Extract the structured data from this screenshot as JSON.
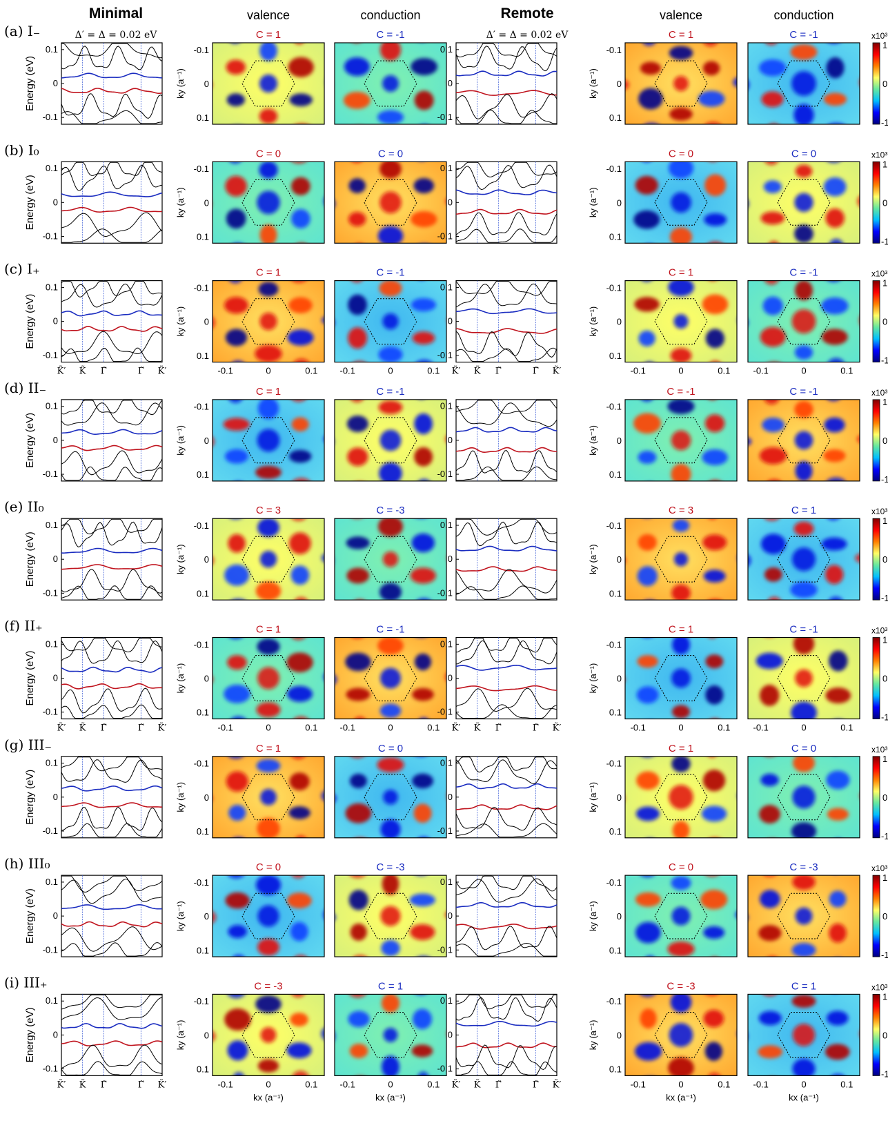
{
  "headers": {
    "minimal": "Minimal",
    "remote": "Remote",
    "valence": "valence",
    "conduction": "conduction",
    "params": "Δ′ = Δ = 0.02 eV"
  },
  "colorbar": {
    "scale": "x10³",
    "max": "1",
    "mid": "0",
    "min": "-1",
    "colors": [
      "#00007f",
      "#0000ff",
      "#00bfff",
      "#66e8a0",
      "#ffff66",
      "#ff8000",
      "#ff0000",
      "#800000"
    ]
  },
  "axes": {
    "energy_label": "Energy (eV)",
    "ky_label": "ky (a⁻¹)",
    "kx_label": "kx (a⁻¹)",
    "energy_ticks": [
      "0.1",
      "0",
      "-0.1"
    ],
    "ky_ticks": [
      "-0.1",
      "0",
      "0.1"
    ],
    "kx_ticks": [
      "-0.1",
      "0",
      "0.1"
    ],
    "kpath": [
      "K̃′",
      "K̃",
      "Γ̃",
      "Γ̃",
      "K̃′"
    ]
  },
  "band_colors": {
    "valence": "#c0141e",
    "conduction": "#1a2cc0",
    "other": "#000000",
    "kline": "#3b5bd6"
  },
  "chart_data": [
    {
      "type": "line",
      "panel": "a",
      "label": "(a) I₋",
      "minimal": {
        "valence_C": "C = 1",
        "conduction_C": "C = -1"
      },
      "remote": {
        "valence_C": "C = 1",
        "conduction_C": "C = -1"
      }
    },
    {
      "type": "line",
      "panel": "b",
      "label": "(b) I₀",
      "minimal": {
        "valence_C": "C = 0",
        "conduction_C": "C = 0"
      },
      "remote": {
        "valence_C": "C = 0",
        "conduction_C": "C = 0"
      }
    },
    {
      "type": "line",
      "panel": "c",
      "label": "(c) I₊",
      "minimal": {
        "valence_C": "C = 1",
        "conduction_C": "C = -1"
      },
      "remote": {
        "valence_C": "C = 1",
        "conduction_C": "C = -1"
      }
    },
    {
      "type": "line",
      "panel": "d",
      "label": "(d) II₋",
      "minimal": {
        "valence_C": "C = 1",
        "conduction_C": "C = -1"
      },
      "remote": {
        "valence_C": "C = -1",
        "conduction_C": "C = -1"
      }
    },
    {
      "type": "line",
      "panel": "e",
      "label": "(e) II₀",
      "minimal": {
        "valence_C": "C = 3",
        "conduction_C": "C = -3"
      },
      "remote": {
        "valence_C": "C = 3",
        "conduction_C": "C = 1"
      }
    },
    {
      "type": "line",
      "panel": "f",
      "label": "(f) II₊",
      "minimal": {
        "valence_C": "C = 1",
        "conduction_C": "C = -1"
      },
      "remote": {
        "valence_C": "C = 1",
        "conduction_C": "C = -1"
      }
    },
    {
      "type": "line",
      "panel": "g",
      "label": "(g) III₋",
      "minimal": {
        "valence_C": "C = 1",
        "conduction_C": "C = 0"
      },
      "remote": {
        "valence_C": "C = 1",
        "conduction_C": "C = 0"
      }
    },
    {
      "type": "line",
      "panel": "h",
      "label": "(h) III₀",
      "minimal": {
        "valence_C": "C = 0",
        "conduction_C": "C = -3"
      },
      "remote": {
        "valence_C": "C = 0",
        "conduction_C": "C = -3"
      }
    },
    {
      "type": "line",
      "panel": "i",
      "label": "(i) III₊",
      "minimal": {
        "valence_C": "C = -3",
        "conduction_C": "C = 1"
      },
      "remote": {
        "valence_C": "C = -3",
        "conduction_C": "C = 1"
      }
    }
  ]
}
